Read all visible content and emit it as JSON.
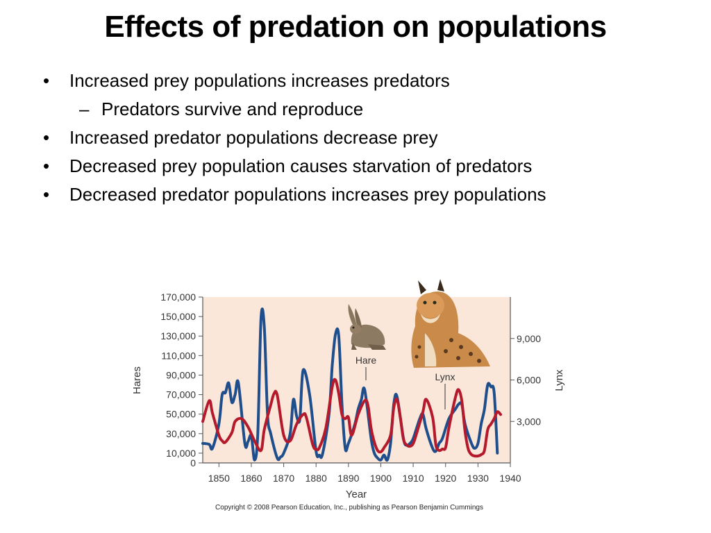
{
  "slide": {
    "title": "Effects of predation on populations",
    "bullets": [
      {
        "marker": "•",
        "text": "Increased prey populations increases predators"
      },
      {
        "marker": "–",
        "text": "Predators survive and reproduce",
        "sub": true
      },
      {
        "marker": "•",
        "text": "Increased predator populations decrease prey"
      },
      {
        "marker": "•",
        "text": "Decreased prey population causes starvation of predators"
      },
      {
        "marker": "•",
        "text": "Decreased predator populations increases prey populations"
      }
    ]
  },
  "chart_data": {
    "type": "line",
    "xlabel": "Year",
    "ylabel": "Hares",
    "y2label": "Lynx",
    "xlim": [
      1845,
      1940
    ],
    "ylim": [
      0,
      170000
    ],
    "y2lim": [
      0,
      12000
    ],
    "x_ticks": [
      1850,
      1860,
      1870,
      1880,
      1890,
      1900,
      1910,
      1920,
      1930,
      1940
    ],
    "x_tick_labels": [
      "1850",
      "1860",
      "1870",
      "1880",
      "1890",
      "1900",
      "1910",
      "1920",
      "1930",
      "1940"
    ],
    "y_ticks": [
      0,
      10000,
      30000,
      50000,
      70000,
      90000,
      110000,
      130000,
      150000,
      170000
    ],
    "y_tick_labels": [
      "0",
      "10,000",
      "30,000",
      "50,000",
      "70,000",
      "90,000",
      "110,000",
      "130,000",
      "150,000",
      "170,000"
    ],
    "y2_ticks": [
      3000,
      6000,
      9000
    ],
    "y2_tick_labels": [
      "3,000",
      "6,000",
      "9,000"
    ],
    "annotations": [
      {
        "text": "Hare",
        "x": 1891,
        "y_axis": "left",
        "y": 112000,
        "points_to": 75000
      },
      {
        "text": "Lynx",
        "x": 1919,
        "y_axis": "left",
        "y": 88000,
        "points_to": 55000
      }
    ],
    "series": [
      {
        "name": "Hare",
        "axis": "left",
        "color": "#1f4e8c",
        "x": [
          1845,
          1847,
          1848,
          1850,
          1851,
          1852,
          1853,
          1854,
          1855,
          1856,
          1858,
          1859,
          1860,
          1861,
          1862,
          1863,
          1864,
          1865,
          1866,
          1868,
          1869,
          1870,
          1872,
          1873,
          1874,
          1875,
          1876,
          1878,
          1880,
          1881,
          1882,
          1884,
          1885,
          1886,
          1887,
          1888,
          1889,
          1890,
          1892,
          1893,
          1894,
          1895,
          1897,
          1898,
          1899,
          1900,
          1901,
          1902,
          1903,
          1904,
          1905,
          1907,
          1908,
          1909,
          1910,
          1912,
          1913,
          1914,
          1916,
          1917,
          1918,
          1919,
          1921,
          1923,
          1924,
          1925,
          1926,
          1928,
          1929,
          1930,
          1931,
          1932,
          1933,
          1934,
          1935,
          1936
        ],
        "y": [
          20000,
          19000,
          15000,
          40000,
          70000,
          72000,
          82000,
          62000,
          70000,
          82000,
          20000,
          22000,
          28000,
          3000,
          30000,
          148000,
          140000,
          50000,
          30000,
          5000,
          6000,
          10000,
          30000,
          65000,
          48000,
          45000,
          95000,
          70000,
          12000,
          8000,
          9000,
          50000,
          100000,
          132000,
          130000,
          60000,
          15000,
          20000,
          40000,
          55000,
          65000,
          75000,
          25000,
          10000,
          5000,
          3000,
          8000,
          3000,
          20000,
          60000,
          68000,
          25000,
          18000,
          20000,
          25000,
          45000,
          50000,
          35000,
          15000,
          12000,
          20000,
          25000,
          45000,
          55000,
          60000,
          60000,
          40000,
          20000,
          15000,
          20000,
          40000,
          55000,
          80000,
          78000,
          72000,
          10000
        ]
      },
      {
        "name": "Lynx",
        "axis": "right",
        "color": "#b5192c",
        "x": [
          1845,
          1847,
          1848,
          1850,
          1851,
          1852,
          1854,
          1855,
          1857,
          1859,
          1861,
          1863,
          1864,
          1866,
          1867,
          1868,
          1870,
          1872,
          1874,
          1876,
          1877,
          1879,
          1880,
          1881,
          1883,
          1885,
          1886,
          1887,
          1888,
          1889,
          1890,
          1891,
          1893,
          1895,
          1896,
          1897,
          1898,
          1899,
          1900,
          1901,
          1903,
          1904,
          1905,
          1906,
          1907,
          1908,
          1909,
          1910,
          1911,
          1913,
          1914,
          1916,
          1917,
          1918,
          1919,
          1920,
          1921,
          1923,
          1924,
          1925,
          1926,
          1927,
          1928,
          1929,
          1930,
          1931,
          1932,
          1933,
          1934,
          1935,
          1936,
          1937
        ],
        "y": [
          3000,
          4500,
          3600,
          2000,
          1600,
          1500,
          2200,
          3000,
          3200,
          2600,
          1600,
          900,
          2400,
          4200,
          5000,
          4900,
          2000,
          1600,
          2800,
          3500,
          3300,
          1300,
          1000,
          1100,
          2500,
          5500,
          6000,
          5000,
          3500,
          3200,
          3300,
          2000,
          3500,
          4500,
          4200,
          2500,
          1500,
          900,
          800,
          1100,
          2000,
          4000,
          4600,
          3300,
          1700,
          1300,
          1200,
          1400,
          2100,
          3700,
          4600,
          3300,
          1300,
          900,
          1000,
          1100,
          2500,
          4700,
          5300,
          4500,
          2300,
          1000,
          600,
          500,
          500,
          600,
          900,
          2400,
          2800,
          3200,
          3700,
          3500
        ]
      }
    ]
  },
  "chart_labels": {
    "copyright": "Copyright © 2008 Pearson Education, Inc., publishing as Pearson Benjamin Cummings"
  },
  "colors": {
    "plot_background": "#fbe7d9",
    "axis": "#555555",
    "text": "#333333"
  },
  "icons": [
    "hare-illustration",
    "lynx-illustration"
  ]
}
